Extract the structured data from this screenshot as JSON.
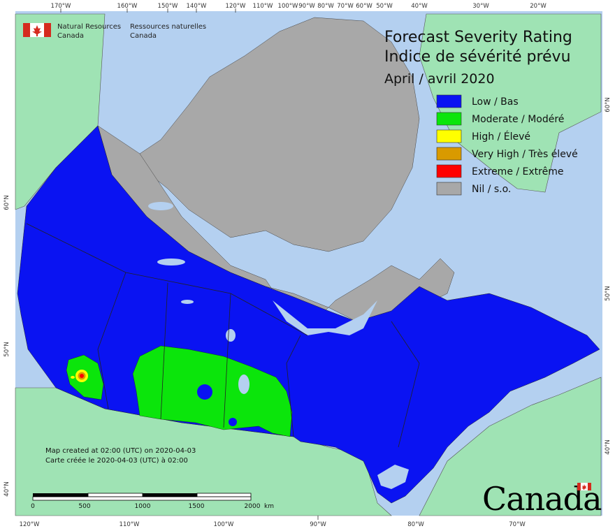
{
  "agency": {
    "name_en": "Natural Resources",
    "country_en": "Canada",
    "name_fr": "Ressources naturelles",
    "country_fr": "Canada"
  },
  "title": {
    "line1": "Forecast Severity Rating",
    "line2": "Indice de sévérité prévu",
    "period": "April / avril 2020"
  },
  "legend": [
    {
      "label": "Low / Bas",
      "color": "#0a13f2"
    },
    {
      "label": "Moderate / Modéré",
      "color": "#0be50b"
    },
    {
      "label": "High / Élevé",
      "color": "#ffff00"
    },
    {
      "label": "Very High / Très élevé",
      "color": "#d99a00"
    },
    {
      "label": "Extreme / Extrême",
      "color": "#ff0000"
    },
    {
      "label": "Nil / s.o.",
      "color": "#a8a8a8"
    }
  ],
  "longitude_top": [
    "170°W",
    "160°W",
    "150°W",
    "140°W",
    "120°W",
    "110°W",
    "100°W",
    "90°W",
    "80°W",
    "70°W",
    "60°W",
    "50°W",
    "40°W",
    "30°W",
    "20°W"
  ],
  "longitude_bottom": [
    "120°W",
    "110°W",
    "100°W",
    "90°W",
    "80°W",
    "70°W"
  ],
  "latitude_left": [
    "60°N",
    "50°N",
    "40°N"
  ],
  "latitude_right": [
    "60°N",
    "50°N",
    "40°N"
  ],
  "notes": {
    "created_en": "Map created at 02:00 (UTC) on 2020-04-03",
    "created_fr": "Carte créée le 2020-04-03 (UTC) à 02:00"
  },
  "scale_bar": {
    "labels": [
      "0",
      "500",
      "1000",
      "1500",
      "2000"
    ],
    "unit": "km"
  },
  "wordmark": "Canada",
  "colors": {
    "ocean": "#b4d0f0",
    "foreign_land": "#9fe3b4",
    "nil": "#a8a8a8",
    "low": "#0a13f2",
    "moderate": "#0be50b"
  }
}
